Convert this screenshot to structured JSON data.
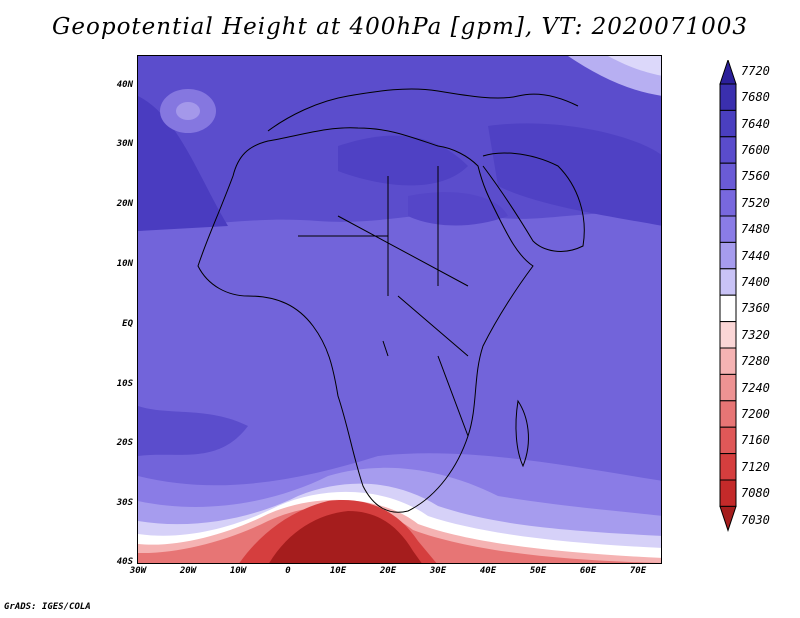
{
  "title": "Geopotential Height at 400hPa [gpm], VT: 2020071003",
  "footer": "GrADS: IGES/COLA",
  "map": {
    "lat_labels": [
      "40N",
      "30N",
      "20N",
      "10N",
      "EQ",
      "10S",
      "20S",
      "30S",
      "40S"
    ],
    "lon_labels": [
      "30W",
      "20W",
      "10W",
      "0",
      "10E",
      "20E",
      "30E",
      "40E",
      "50E",
      "60E",
      "70E"
    ]
  },
  "colorbar": {
    "levels": [
      "7720",
      "7680",
      "7640",
      "7600",
      "7560",
      "7520",
      "7480",
      "7440",
      "7400",
      "7360",
      "7320",
      "7280",
      "7240",
      "7200",
      "7160",
      "7120",
      "7080",
      "7030"
    ],
    "colors": [
      "#2b1f9a",
      "#3a2fae",
      "#4a3fc0",
      "#5a4ccc",
      "#6a5bd6",
      "#7868de",
      "#8a7ce6",
      "#a69cee",
      "#c9c3f6",
      "#ffffff",
      "#fbd6d6",
      "#f5b3b3",
      "#ee9393",
      "#e77575",
      "#df5858",
      "#d53e3e",
      "#c42a2a",
      "#a51d1d"
    ]
  }
}
